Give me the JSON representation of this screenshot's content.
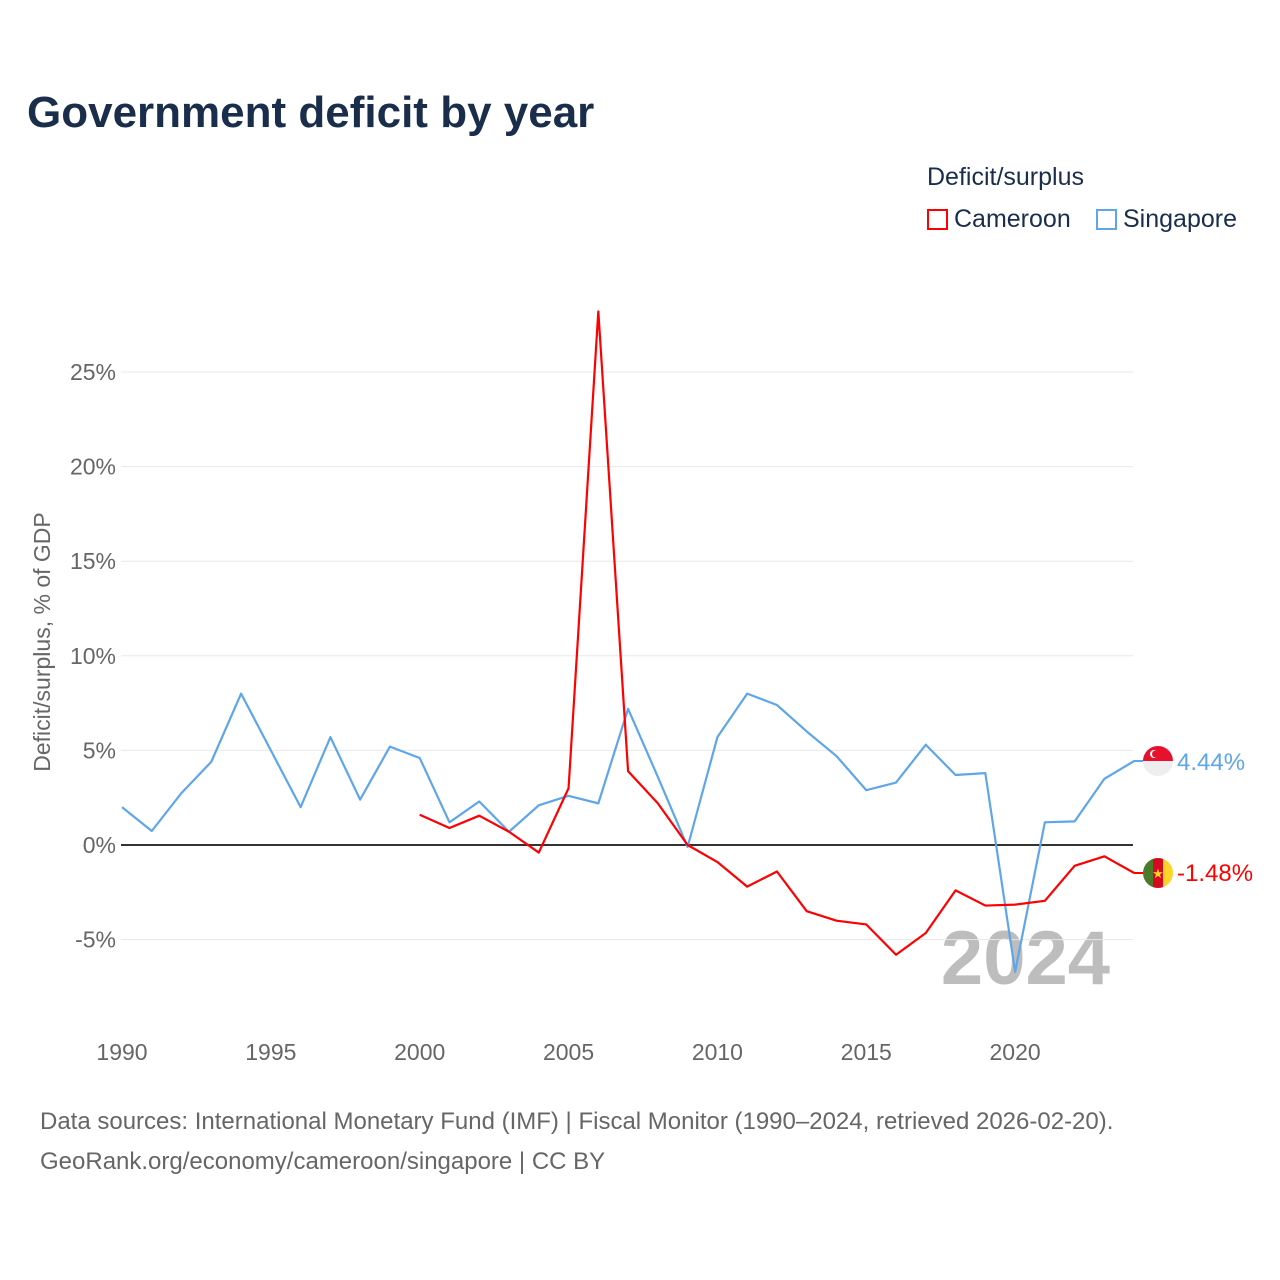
{
  "chart_data": {
    "type": "line",
    "title": "Government deficit by year",
    "ylabel": "Deficit/surplus, % of GDP",
    "xlabel": "",
    "legend_title": "Deficit/surplus",
    "legend_position": "top-right",
    "ylim": [
      -8.5,
      29
    ],
    "xlim": [
      1990,
      2024
    ],
    "yticks": [
      -5,
      0,
      5,
      10,
      15,
      20,
      25
    ],
    "ytick_labels": [
      "-5%",
      "0%",
      "5%",
      "10%",
      "15%",
      "20%",
      "25%"
    ],
    "xticks": [
      1990,
      1995,
      2000,
      2005,
      2010,
      2015,
      2020
    ],
    "xtick_labels": [
      "1990",
      "1995",
      "2000",
      "2005",
      "2010",
      "2015",
      "2020"
    ],
    "grid": true,
    "year_watermark": "2024",
    "series": [
      {
        "name": "Cameroon",
        "color": "#ff0000",
        "end_label": "-1.48%",
        "x": [
          2000,
          2001,
          2002,
          2003,
          2004,
          2005,
          2006,
          2007,
          2008,
          2009,
          2010,
          2011,
          2012,
          2013,
          2014,
          2015,
          2016,
          2017,
          2018,
          2019,
          2020,
          2021,
          2022,
          2023,
          2024
        ],
        "values": [
          1.6,
          0.9,
          1.55,
          0.7,
          -0.4,
          3.0,
          28.2,
          3.9,
          2.2,
          0,
          -0.9,
          -2.2,
          -1.4,
          -3.5,
          -4.0,
          -4.2,
          -5.8,
          -4.65,
          -2.4,
          -3.2,
          -3.15,
          -2.95,
          -1.1,
          -0.6,
          -1.48
        ]
      },
      {
        "name": "Singapore",
        "color": "#5ea6ea",
        "end_label": "4.44%",
        "x": [
          1990,
          1991,
          1992,
          1993,
          1994,
          1995,
          1996,
          1997,
          1998,
          1999,
          2000,
          2001,
          2002,
          2003,
          2004,
          2005,
          2006,
          2007,
          2008,
          2009,
          2010,
          2011,
          2012,
          2013,
          2014,
          2015,
          2016,
          2017,
          2018,
          2019,
          2020,
          2021,
          2022,
          2023,
          2024
        ],
        "values": [
          2.0,
          0.74,
          2.75,
          4.4,
          8.0,
          5.0,
          2.0,
          5.7,
          2.4,
          5.2,
          4.6,
          1.2,
          2.3,
          0.7,
          2.1,
          2.6,
          2.2,
          7.2,
          3.6,
          -0.1,
          5.7,
          8.0,
          7.4,
          6.0,
          4.7,
          2.9,
          3.3,
          5.3,
          3.7,
          3.8,
          -6.7,
          1.2,
          1.25,
          3.5,
          4.44
        ]
      }
    ]
  },
  "footer": {
    "line1": "Data sources: International Monetary Fund (IMF) | Fiscal Monitor (1990–2024, retrieved 2026-02-20).",
    "line2": "GeoRank.org/economy/cameroon/singapore | CC BY"
  }
}
